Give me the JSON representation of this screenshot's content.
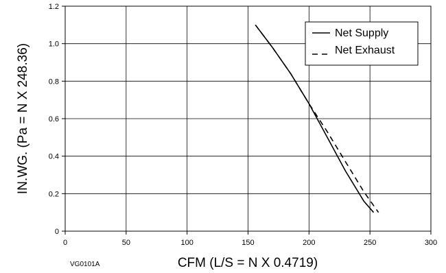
{
  "chart_data": {
    "type": "line",
    "xlabel": "CFM (L/S = N X 0.4719)",
    "ylabel": "IN.WG. (Pa = N X 248.36)",
    "xlim": [
      0,
      300
    ],
    "ylim": [
      0,
      1.2
    ],
    "xticks": [
      0,
      50,
      100,
      150,
      200,
      250,
      300
    ],
    "yticks": [
      0,
      0.2,
      0.4,
      0.6,
      0.8,
      1.0,
      1.2
    ],
    "xtick_labels": [
      "0",
      "50",
      "100",
      "150",
      "200",
      "250",
      "300"
    ],
    "ytick_labels": [
      "0",
      "0.2",
      "0.4",
      "0.6",
      "0.8",
      "1.0",
      "1.2"
    ],
    "grid": true,
    "legend_position": "top-right",
    "figure_code": "VG0101A",
    "series": [
      {
        "name": "Net Supply",
        "style": "solid",
        "x": [
          156,
          170,
          185,
          200,
          215,
          230,
          245,
          253
        ],
        "y": [
          1.1,
          0.98,
          0.84,
          0.68,
          0.5,
          0.32,
          0.16,
          0.1
        ]
      },
      {
        "name": "Net Exhaust",
        "style": "dashed",
        "x": [
          156,
          170,
          185,
          200,
          215,
          230,
          245,
          257
        ],
        "y": [
          1.1,
          0.98,
          0.84,
          0.68,
          0.53,
          0.37,
          0.21,
          0.1
        ]
      }
    ]
  }
}
